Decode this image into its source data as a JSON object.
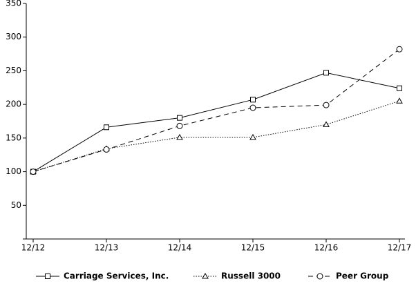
{
  "chart_data": {
    "type": "line",
    "categories": [
      "12/12",
      "12/13",
      "12/14",
      "12/15",
      "12/16",
      "12/17"
    ],
    "series": [
      {
        "name": "Carriage Services, Inc.",
        "color": "#000000",
        "style": "solid",
        "marker": "square",
        "values": [
          100,
          166,
          180,
          207,
          247,
          224
        ]
      },
      {
        "name": "Russell 3000",
        "color": "#000000",
        "style": "dotted",
        "marker": "triangle",
        "values": [
          100,
          134,
          151,
          151,
          170,
          205
        ]
      },
      {
        "name": "Peer Group",
        "color": "#000000",
        "style": "dashed",
        "marker": "circle",
        "values": [
          100,
          133,
          168,
          195,
          199,
          282
        ]
      }
    ],
    "ylim": [
      0,
      350
    ],
    "yticks": [
      50,
      100,
      150,
      200,
      250,
      300,
      350
    ]
  }
}
